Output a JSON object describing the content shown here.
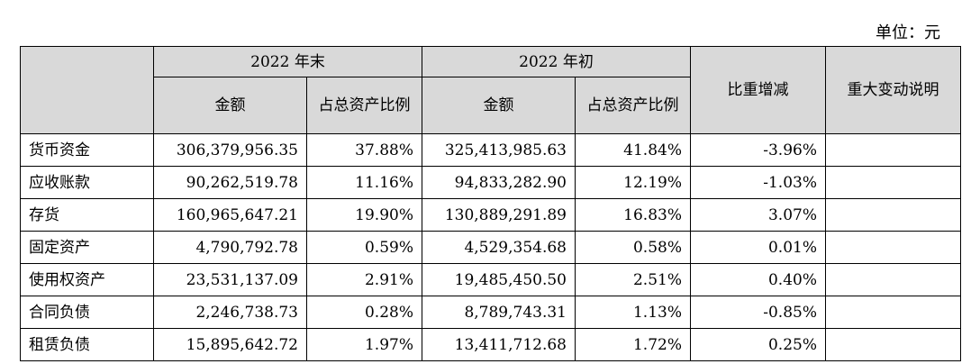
{
  "unit_label": "单位：元",
  "header": {
    "year_end": "2022 年末",
    "year_begin": "2022 年初",
    "amount": "金额",
    "ratio": "占总资产比例",
    "change": "比重增减",
    "explanation": "重大变动说明"
  },
  "rows": [
    {
      "item": "货币资金",
      "end_amount": "306,379,956.35",
      "end_ratio": "37.88%",
      "begin_amount": "325,413,985.63",
      "begin_ratio": "41.84%",
      "change": "-3.96%",
      "note": ""
    },
    {
      "item": "应收账款",
      "end_amount": "90,262,519.78",
      "end_ratio": "11.16%",
      "begin_amount": "94,833,282.90",
      "begin_ratio": "12.19%",
      "change": "-1.03%",
      "note": ""
    },
    {
      "item": "存货",
      "end_amount": "160,965,647.21",
      "end_ratio": "19.90%",
      "begin_amount": "130,889,291.89",
      "begin_ratio": "16.83%",
      "change": "3.07%",
      "note": ""
    },
    {
      "item": "固定资产",
      "end_amount": "4,790,792.78",
      "end_ratio": "0.59%",
      "begin_amount": "4,529,354.68",
      "begin_ratio": "0.58%",
      "change": "0.01%",
      "note": ""
    },
    {
      "item": "使用权资产",
      "end_amount": "23,531,137.09",
      "end_ratio": "2.91%",
      "begin_amount": "19,485,450.50",
      "begin_ratio": "2.51%",
      "change": "0.40%",
      "note": ""
    },
    {
      "item": "合同负债",
      "end_amount": "2,246,738.73",
      "end_ratio": "0.28%",
      "begin_amount": "8,789,743.31",
      "begin_ratio": "1.13%",
      "change": "-0.85%",
      "note": ""
    },
    {
      "item": "租赁负债",
      "end_amount": "15,895,642.72",
      "end_ratio": "1.97%",
      "begin_amount": "13,411,712.68",
      "begin_ratio": "1.72%",
      "change": "0.25%",
      "note": ""
    }
  ]
}
